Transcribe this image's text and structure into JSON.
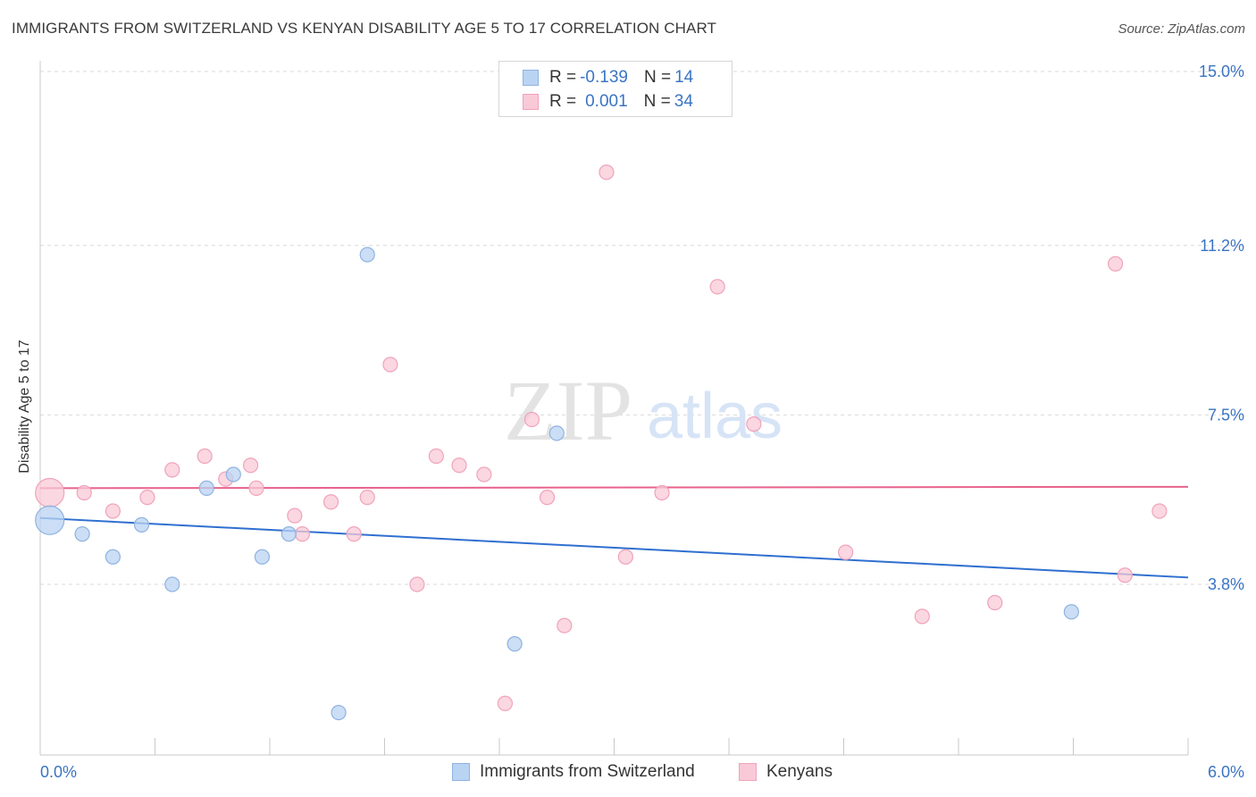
{
  "title": "IMMIGRANTS FROM SWITZERLAND VS KENYAN DISABILITY AGE 5 TO 17 CORRELATION CHART",
  "source": "Source: ZipAtlas.com",
  "watermark": {
    "zip": "ZIP",
    "atlas": "atlas"
  },
  "legend": {
    "rows": [
      {
        "r_label": "R =",
        "r_value": "-0.139",
        "n_label": "N =",
        "n_value": "14"
      },
      {
        "r_label": "R =",
        "r_value": "0.001",
        "n_label": "N =",
        "n_value": "34"
      }
    ]
  },
  "colors": {
    "blue_fill": "#b9d3f3",
    "blue_stroke": "#8fb3e0",
    "blue_line": "#2f6fd0",
    "pink_fill": "#f9c9d7",
    "pink_stroke": "#f0a3bb",
    "pink_line": "#e8628c",
    "axis_value": "#3a74c4",
    "grid": "#d9d9d9"
  },
  "chart_data": {
    "type": "scatter",
    "title": "IMMIGRANTS FROM SWITZERLAND VS KENYAN DISABILITY AGE 5 TO 17 CORRELATION CHART",
    "xlabel": "",
    "ylabel": "Disability Age 5 to 17",
    "xlim": [
      0,
      6.0
    ],
    "ylim": [
      0,
      15.5
    ],
    "x_tick_labels": [
      "0.0%",
      "6.0%"
    ],
    "y_ticks": [
      3.8,
      7.5,
      11.2,
      15.0
    ],
    "y_tick_labels": [
      "3.8%",
      "7.5%",
      "11.2%",
      "15.0%"
    ],
    "series": [
      {
        "name": "Immigrants from Switzerland",
        "color": "blue",
        "points": [
          {
            "x": 0.05,
            "y": 5.2,
            "big": true
          },
          {
            "x": 0.22,
            "y": 4.9
          },
          {
            "x": 0.38,
            "y": 4.4
          },
          {
            "x": 0.53,
            "y": 5.1
          },
          {
            "x": 0.69,
            "y": 3.8
          },
          {
            "x": 0.87,
            "y": 5.9
          },
          {
            "x": 1.01,
            "y": 6.2
          },
          {
            "x": 1.16,
            "y": 4.4
          },
          {
            "x": 1.3,
            "y": 4.9
          },
          {
            "x": 1.56,
            "y": 1.0
          },
          {
            "x": 1.71,
            "y": 11.0
          },
          {
            "x": 2.48,
            "y": 2.5
          },
          {
            "x": 2.7,
            "y": 7.1
          },
          {
            "x": 5.39,
            "y": 3.2
          }
        ],
        "trend": {
          "y_start": 5.25,
          "y_end": 3.95
        }
      },
      {
        "name": "Kenyans",
        "color": "pink",
        "points": [
          {
            "x": 0.05,
            "y": 5.8,
            "big": true
          },
          {
            "x": 0.23,
            "y": 5.8
          },
          {
            "x": 0.38,
            "y": 5.4
          },
          {
            "x": 0.56,
            "y": 5.7
          },
          {
            "x": 0.69,
            "y": 6.3
          },
          {
            "x": 0.86,
            "y": 6.6
          },
          {
            "x": 0.97,
            "y": 6.1
          },
          {
            "x": 1.1,
            "y": 6.4
          },
          {
            "x": 1.13,
            "y": 5.9
          },
          {
            "x": 1.33,
            "y": 5.3
          },
          {
            "x": 1.37,
            "y": 4.9
          },
          {
            "x": 1.52,
            "y": 5.6
          },
          {
            "x": 1.64,
            "y": 4.9
          },
          {
            "x": 1.71,
            "y": 5.7
          },
          {
            "x": 1.83,
            "y": 8.6
          },
          {
            "x": 1.97,
            "y": 3.8
          },
          {
            "x": 2.07,
            "y": 6.6
          },
          {
            "x": 2.19,
            "y": 6.4
          },
          {
            "x": 2.32,
            "y": 6.2
          },
          {
            "x": 2.43,
            "y": 1.2
          },
          {
            "x": 2.57,
            "y": 7.4
          },
          {
            "x": 2.65,
            "y": 5.7
          },
          {
            "x": 2.74,
            "y": 2.9
          },
          {
            "x": 2.96,
            "y": 12.8
          },
          {
            "x": 3.06,
            "y": 4.4
          },
          {
            "x": 3.25,
            "y": 5.8
          },
          {
            "x": 3.54,
            "y": 10.3
          },
          {
            "x": 3.73,
            "y": 7.3
          },
          {
            "x": 4.21,
            "y": 4.5
          },
          {
            "x": 4.61,
            "y": 3.1
          },
          {
            "x": 4.99,
            "y": 3.4
          },
          {
            "x": 5.62,
            "y": 10.8
          },
          {
            "x": 5.67,
            "y": 4.0
          },
          {
            "x": 5.85,
            "y": 5.4
          }
        ],
        "trend": {
          "y_start": 5.9,
          "y_end": 5.93
        }
      }
    ]
  }
}
